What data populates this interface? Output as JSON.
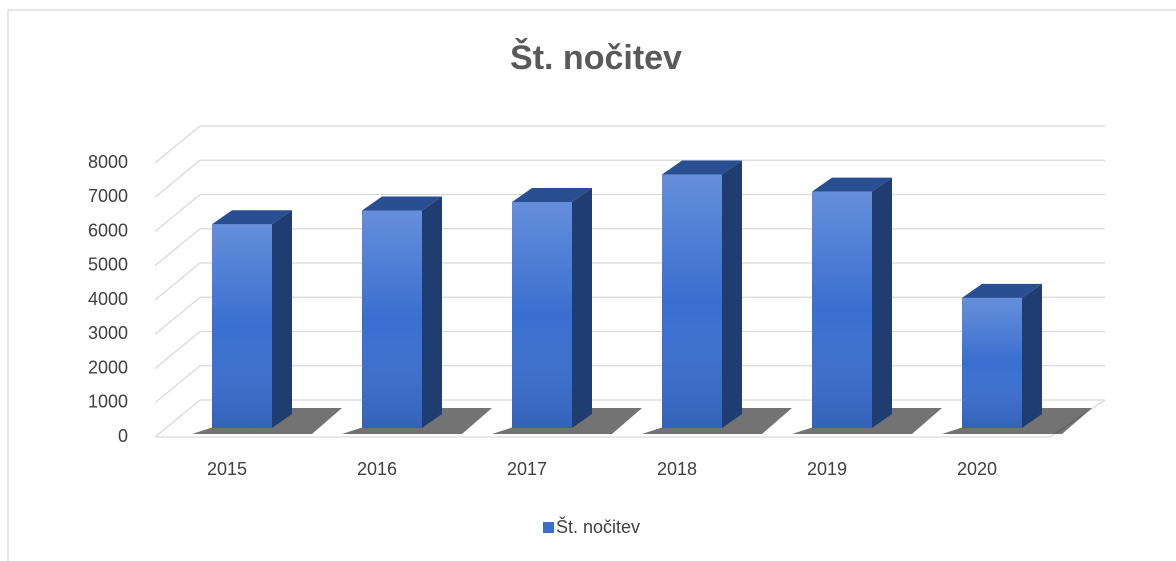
{
  "chart_data": {
    "type": "bar",
    "title": "Št. nočitev",
    "categories": [
      "2015",
      "2016",
      "2017",
      "2018",
      "2019",
      "2020"
    ],
    "series": [
      {
        "name": "Št. nočitev",
        "color": "#3a6fd0",
        "values": [
          5950,
          6350,
          6600,
          7400,
          6900,
          3800
        ]
      }
    ],
    "ylim": [
      0,
      8000
    ],
    "yticks": [
      0,
      1000,
      2000,
      3000,
      4000,
      5000,
      6000,
      7000,
      8000
    ],
    "grid": true,
    "legend": "bottom"
  }
}
